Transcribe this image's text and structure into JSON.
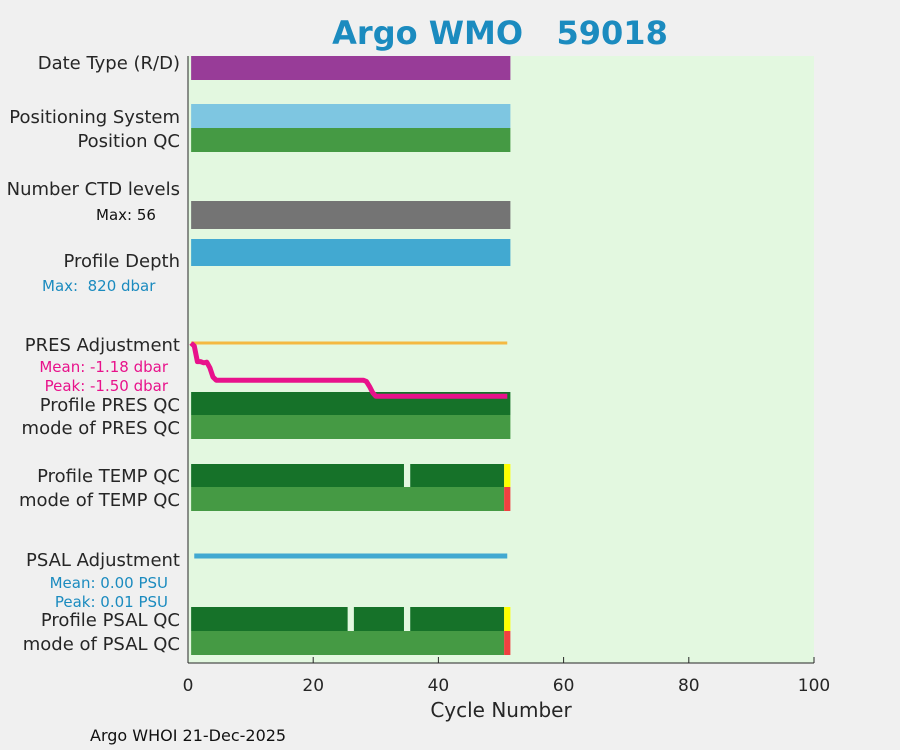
{
  "chart_data": {
    "type": "bar",
    "title": "Argo WMO   59018",
    "xlabel": "Cycle Number",
    "xlim": [
      0,
      100
    ],
    "xticks": [
      0,
      20,
      40,
      60,
      80,
      100
    ],
    "footer": "Argo WHOI 21-Dec-2025",
    "rows": [
      {
        "name": "Date Type (R/D)"
      },
      {
        "name": "Positioning System"
      },
      {
        "name": "Position QC"
      },
      {
        "name": "Number CTD levels"
      },
      {
        "name": "Profile Depth"
      },
      {
        "name": "PRES Adjustment"
      },
      {
        "name": "Profile PRES QC"
      },
      {
        "name": "mode of PRES QC"
      },
      {
        "name": "Profile TEMP QC"
      },
      {
        "name": "mode of TEMP QC"
      },
      {
        "name": "PSAL Adjustment"
      },
      {
        "name": "Profile PSAL QC"
      },
      {
        "name": "mode of PSAL QC"
      }
    ],
    "annotations": {
      "ctd_max": "Max: 56",
      "depth_max": "Max:  820 dbar",
      "pres_mean": "Mean: -1.18 dbar",
      "pres_peak": "Peak: -1.50 dbar",
      "psal_mean": "Mean: 0.00 PSU",
      "psal_peak": "Peak: 0.01 PSU"
    },
    "series": [
      {
        "name": "Date Type (R/D)",
        "x_start": 0.5,
        "x_end": 51.5,
        "color": "#983c98"
      },
      {
        "name": "Positioning System",
        "x_start": 0.5,
        "x_end": 51.5,
        "color": "#7ec6e1"
      },
      {
        "name": "Position QC",
        "x_start": 0.5,
        "x_end": 51.5,
        "color": "#459a44"
      },
      {
        "name": "Number CTD levels",
        "x_start": 0.5,
        "x_end": 51.5,
        "color": "#747474"
      },
      {
        "name": "Profile Depth",
        "x_start": 0.5,
        "x_end": 51.5,
        "color": "#42a9d1"
      },
      {
        "name": "Profile PRES QC",
        "x_start": 0.5,
        "x_end": 51.5,
        "color": "#167229"
      },
      {
        "name": "mode of PRES QC",
        "x_start": 0.5,
        "x_end": 51.5,
        "color": "#459a44"
      },
      {
        "name": "Profile TEMP QC",
        "segments": [
          [
            0.5,
            34.5,
            "#167229"
          ],
          [
            35.5,
            50.5,
            "#167229"
          ],
          [
            50.5,
            51.5,
            "#ffff00"
          ]
        ]
      },
      {
        "name": "mode of TEMP QC",
        "segments": [
          [
            0.5,
            50.5,
            "#459a44"
          ],
          [
            50.5,
            51.5,
            "#f04040"
          ]
        ]
      },
      {
        "name": "Profile PSAL QC",
        "segments": [
          [
            0.5,
            25.5,
            "#167229"
          ],
          [
            26.5,
            34.5,
            "#167229"
          ],
          [
            35.5,
            50.5,
            "#167229"
          ],
          [
            50.5,
            51.5,
            "#ffff00"
          ]
        ]
      },
      {
        "name": "mode of PSAL QC",
        "segments": [
          [
            0.5,
            50.5,
            "#459a44"
          ],
          [
            50.5,
            51.5,
            "#f04040"
          ]
        ]
      }
    ],
    "pres_adjustment": {
      "zero_line": {
        "x": [
          0.5,
          51.0
        ],
        "color": "#f4b942"
      },
      "offset_dbar": {
        "x": [
          0.5,
          1,
          1.5,
          2,
          2.5,
          3,
          3.5,
          4,
          4.5,
          5,
          10,
          15,
          20,
          25,
          28,
          28.5,
          29,
          29.5,
          30,
          35,
          40,
          45,
          50,
          51
        ],
        "y": [
          0,
          -0.05,
          -0.3,
          -0.3,
          -0.32,
          -0.31,
          -0.4,
          -0.55,
          -0.6,
          -0.6,
          -0.6,
          -0.6,
          -0.6,
          -0.6,
          -0.6,
          -0.62,
          -0.7,
          -0.8,
          -0.86,
          -0.86,
          -0.86,
          -0.86,
          -0.86,
          -0.86
        ],
        "color": "#e8128b"
      }
    },
    "psal_adjustment": {
      "x": [
        1,
        51
      ],
      "y": [
        0,
        0
      ],
      "color": "#42a9d1"
    }
  }
}
